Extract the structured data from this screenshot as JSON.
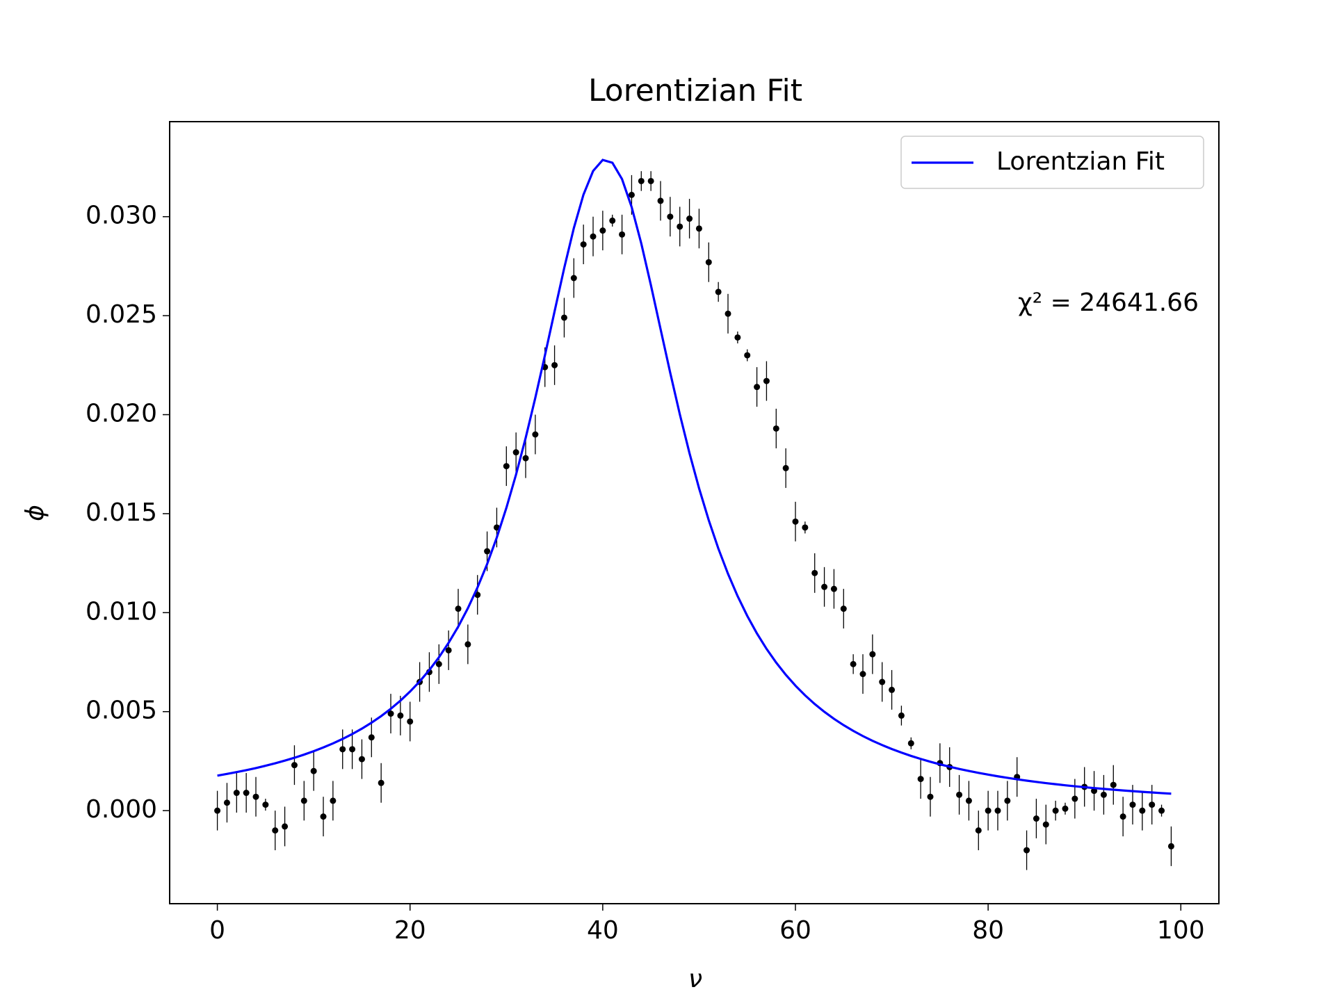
{
  "chart_data": {
    "type": "scatter-fit",
    "title": "Lorentizian Fit",
    "x_label": "ν",
    "y_label": "ϕ",
    "annotation": "χ² = 24641.66",
    "x": [
      0,
      1,
      2,
      3,
      4,
      5,
      6,
      7,
      8,
      9,
      10,
      11,
      12,
      13,
      14,
      15,
      16,
      17,
      18,
      19,
      20,
      21,
      22,
      23,
      24,
      25,
      26,
      27,
      28,
      29,
      30,
      31,
      32,
      33,
      34,
      35,
      36,
      37,
      38,
      39,
      40,
      41,
      42,
      43,
      44,
      45,
      46,
      47,
      48,
      49,
      50,
      51,
      52,
      53,
      54,
      55,
      56,
      57,
      58,
      59,
      60,
      61,
      62,
      63,
      64,
      65,
      66,
      67,
      68,
      69,
      70,
      71,
      72,
      73,
      74,
      75,
      76,
      77,
      78,
      79,
      80,
      81,
      82,
      83,
      84,
      85,
      86,
      87,
      88,
      89,
      90,
      91,
      92,
      93,
      94,
      95,
      96,
      97,
      98,
      99
    ],
    "points": {
      "color": "#000000",
      "values": [
        0.0,
        0.0004,
        0.0009,
        0.0009,
        0.0007,
        0.0003,
        -0.001,
        -0.0008,
        0.0023,
        0.0005,
        0.002,
        -0.0003,
        0.0005,
        0.0031,
        0.0031,
        0.0026,
        0.0037,
        0.0014,
        0.0049,
        0.0048,
        0.0045,
        0.0065,
        0.007,
        0.0074,
        0.0081,
        0.0102,
        0.0084,
        0.0109,
        0.0131,
        0.0143,
        0.0174,
        0.0181,
        0.0178,
        0.019,
        0.0224,
        0.0225,
        0.0249,
        0.0269,
        0.0286,
        0.029,
        0.0293,
        0.0298,
        0.0291,
        0.0311,
        0.0318,
        0.0318,
        0.0308,
        0.03,
        0.0295,
        0.0299,
        0.0294,
        0.0277,
        0.0262,
        0.0251,
        0.0239,
        0.023,
        0.0214,
        0.0217,
        0.0193,
        0.0173,
        0.0146,
        0.0143,
        0.012,
        0.0113,
        0.0112,
        0.0102,
        0.0074,
        0.0069,
        0.0079,
        0.0065,
        0.0061,
        0.0048,
        0.0034,
        0.0016,
        0.0007,
        0.0024,
        0.0022,
        0.0008,
        0.0005,
        -0.001,
        0.0,
        0.0,
        0.0005,
        0.0017,
        -0.002,
        -0.0004,
        -0.0007,
        0.0,
        0.0001,
        0.0006,
        0.0012,
        0.001,
        0.0008,
        0.0013,
        -0.0003,
        0.0003,
        0.0,
        0.0003,
        0.0,
        -0.0018
      ],
      "errors": [
        0.001,
        0.001,
        0.001,
        0.001,
        0.001,
        0.0003,
        0.001,
        0.001,
        0.001,
        0.001,
        0.001,
        0.001,
        0.001,
        0.001,
        0.001,
        0.001,
        0.001,
        0.001,
        0.001,
        0.001,
        0.001,
        0.001,
        0.001,
        0.001,
        0.001,
        0.001,
        0.001,
        0.001,
        0.001,
        0.001,
        0.001,
        0.001,
        0.001,
        0.001,
        0.001,
        0.001,
        0.001,
        0.001,
        0.001,
        0.001,
        0.001,
        0.0003,
        0.001,
        0.001,
        0.0005,
        0.0005,
        0.001,
        0.001,
        0.001,
        0.001,
        0.001,
        0.001,
        0.0005,
        0.001,
        0.0003,
        0.0003,
        0.001,
        0.001,
        0.001,
        0.001,
        0.001,
        0.0003,
        0.001,
        0.001,
        0.001,
        0.001,
        0.0005,
        0.001,
        0.001,
        0.001,
        0.001,
        0.0005,
        0.0003,
        0.001,
        0.001,
        0.001,
        0.001,
        0.001,
        0.001,
        0.001,
        0.001,
        0.001,
        0.001,
        0.001,
        0.001,
        0.001,
        0.001,
        0.0005,
        0.0003,
        0.001,
        0.001,
        0.001,
        0.001,
        0.001,
        0.001,
        0.001,
        0.001,
        0.001,
        0.0003,
        0.001
      ]
    },
    "series": [
      {
        "name": "Lorentzian Fit",
        "color": "#0000ff",
        "values": [
          0.001767,
          0.001853,
          0.001945,
          0.002044,
          0.002151,
          0.002266,
          0.00239,
          0.002525,
          0.00267,
          0.002829,
          0.003001,
          0.00319,
          0.003395,
          0.003621,
          0.003868,
          0.004141,
          0.004442,
          0.004774,
          0.005144,
          0.005555,
          0.006014,
          0.006525,
          0.0071,
          0.007745,
          0.008473,
          0.009294,
          0.010221,
          0.011271,
          0.012453,
          0.013789,
          0.015295,
          0.016972,
          0.018827,
          0.020846,
          0.022996,
          0.025215,
          0.027403,
          0.029423,
          0.031114,
          0.032307,
          0.032868,
          0.032726,
          0.0319,
          0.030488,
          0.028646,
          0.026539,
          0.024325,
          0.022124,
          0.02002,
          0.018064,
          0.016279,
          0.014673,
          0.013237,
          0.011963,
          0.010834,
          0.009836,
          0.008953,
          0.008171,
          0.007478,
          0.006862,
          0.006313,
          0.005824,
          0.005385,
          0.004992,
          0.004637,
          0.004318,
          0.004028,
          0.003766,
          0.003528,
          0.003311,
          0.003112,
          0.002931,
          0.002764,
          0.002611,
          0.002469,
          0.002339,
          0.002219,
          0.002107,
          0.002003,
          0.001907,
          0.001818,
          0.001734,
          0.001656,
          0.001583,
          0.001515,
          0.001451,
          0.00139,
          0.001334,
          0.001281,
          0.001231,
          0.001183,
          0.001139,
          0.001097,
          0.001057,
          0.001019,
          0.000983,
          0.000949,
          0.000917,
          0.000886,
          0.000857
        ]
      }
    ],
    "xlim": [
      -4.95,
      103.95
    ],
    "ylim": [
      -0.0047,
      0.0348
    ],
    "xticks": [
      0,
      20,
      40,
      60,
      80,
      100
    ],
    "yticks": [
      {
        "value": 0,
        "label": "0.000"
      },
      {
        "value": 0.005,
        "label": "0.005"
      },
      {
        "value": 0.01,
        "label": "0.010"
      },
      {
        "value": 0.015,
        "label": "0.015"
      },
      {
        "value": 0.02,
        "label": "0.020"
      },
      {
        "value": 0.025,
        "label": "0.025"
      },
      {
        "value": 0.03,
        "label": "0.030"
      }
    ],
    "legend": "upper right",
    "grid": false
  }
}
